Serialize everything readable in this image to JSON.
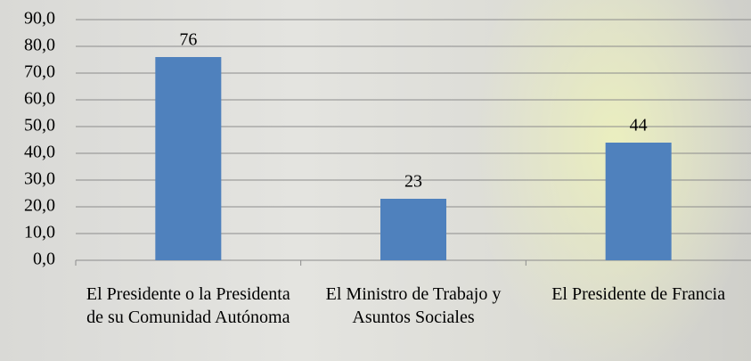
{
  "chart_data": {
    "type": "bar",
    "categories": [
      "El Presidente o la Presidenta de su Comunidad Autónoma",
      "El Ministro de Trabajo y Asuntos Sociales",
      "El Presidente de Francia"
    ],
    "values": [
      76,
      23,
      44
    ],
    "color": "#4f81bd",
    "ylim": [
      0,
      90
    ],
    "yticks": [
      {
        "value": 0,
        "label": "0,0"
      },
      {
        "value": 10,
        "label": "10,0"
      },
      {
        "value": 20,
        "label": "20,0"
      },
      {
        "value": 30,
        "label": "30,0"
      },
      {
        "value": 40,
        "label": "40,0"
      },
      {
        "value": 50,
        "label": "50,0"
      },
      {
        "value": 60,
        "label": "60,0"
      },
      {
        "value": 70,
        "label": "70,0"
      },
      {
        "value": 80,
        "label": "80,0"
      },
      {
        "value": 90,
        "label": "90,0"
      }
    ],
    "grid": true
  }
}
